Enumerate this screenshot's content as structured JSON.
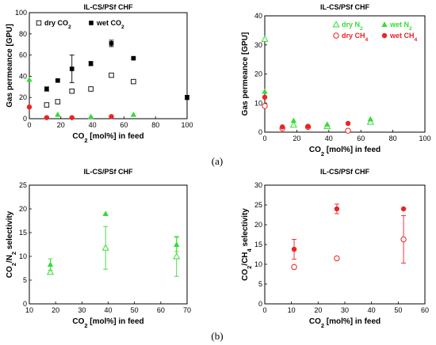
{
  "captions": {
    "a": "(a)",
    "b": "(b)"
  },
  "chart_data": [
    {
      "type": "scatter",
      "title": "IL-CS/PSf CHF",
      "xlabel": "CO₂ [mol%] in feed",
      "ylabel": "Gas permeance [GPU]",
      "xlim": [
        0,
        100
      ],
      "ylim": [
        0,
        100
      ],
      "xticks": [
        0,
        20,
        40,
        60,
        80,
        100
      ],
      "yticks": [
        0,
        20,
        40,
        60,
        80,
        100
      ],
      "legend_position": "top",
      "series": [
        {
          "name": "dry CO₂",
          "color": "#000000",
          "marker": "open-square",
          "x": [
            11,
            18,
            27,
            39,
            52,
            66
          ],
          "y": [
            13,
            16,
            26,
            28,
            41,
            35
          ]
        },
        {
          "name": "wet CO₂",
          "color": "#000000",
          "marker": "filled-square",
          "x": [
            11,
            18,
            27,
            39,
            52,
            66,
            100
          ],
          "y": [
            28,
            36,
            47,
            52,
            71,
            57,
            20
          ],
          "err": [
            2,
            1,
            13,
            2,
            3,
            1,
            2
          ]
        },
        {
          "name": "",
          "color": "#33dd33",
          "marker": "filled-triangle",
          "x": [
            0,
            18,
            39,
            66
          ],
          "y": [
            37,
            4,
            2,
            4
          ]
        },
        {
          "name": "",
          "color": "#ee2222",
          "marker": "filled-circle",
          "x": [
            0,
            11,
            27,
            52
          ],
          "y": [
            11,
            1,
            1,
            2
          ]
        }
      ]
    },
    {
      "type": "scatter",
      "title": "IL-CS/PSf CHF",
      "xlabel": "CO₂ [mol%] in feed",
      "ylabel": "Gas permeance [GPU]",
      "xlim": [
        0,
        100
      ],
      "ylim": [
        0,
        40
      ],
      "xticks": [
        0,
        20,
        40,
        60,
        80,
        100
      ],
      "yticks": [
        0,
        10,
        20,
        30,
        40
      ],
      "legend_position": "top",
      "series": [
        {
          "name": "dry N₂",
          "color": "#33dd33",
          "marker": "open-triangle",
          "x": [
            0,
            18,
            39,
            66
          ],
          "y": [
            32,
            2.5,
            2,
            3.5
          ]
        },
        {
          "name": "wet N₂",
          "color": "#33dd33",
          "marker": "filled-triangle",
          "x": [
            0,
            18,
            39,
            66
          ],
          "y": [
            14,
            4,
            2.7,
            4.5
          ]
        },
        {
          "name": "dry CH₄",
          "color": "#ee2222",
          "marker": "open-circle",
          "x": [
            0,
            11,
            27,
            52
          ],
          "y": [
            9,
            1.3,
            1.8,
            0.5
          ]
        },
        {
          "name": "wet CH₄",
          "color": "#ee2222",
          "marker": "filled-circle",
          "x": [
            0,
            11,
            27,
            52
          ],
          "y": [
            12,
            1.8,
            2,
            3
          ]
        }
      ]
    },
    {
      "type": "scatter",
      "title": "IL-CS/PSf CHF",
      "xlabel": "CO₂ [mol%] in feed",
      "ylabel": "CO₂/N₂ selectivity",
      "xlim": [
        10,
        70
      ],
      "ylim": [
        0,
        25
      ],
      "xticks": [
        10,
        20,
        30,
        40,
        50,
        60,
        70
      ],
      "yticks": [
        0,
        5,
        10,
        15,
        20,
        25
      ],
      "series": [
        {
          "name": "",
          "color": "#33dd33",
          "marker": "open-triangle",
          "x": [
            18,
            39,
            66
          ],
          "y": [
            6.7,
            11.8,
            10
          ],
          "err": [
            0,
            4.5,
            4.2
          ]
        },
        {
          "name": "",
          "color": "#33dd33",
          "marker": "filled-triangle",
          "x": [
            18,
            39,
            66
          ],
          "y": [
            8.3,
            19,
            12.5
          ],
          "err": [
            1.2,
            0,
            1.5
          ]
        }
      ]
    },
    {
      "type": "scatter",
      "title": "IL-CS/PSf CHF",
      "xlabel": "CO₂ [mol%] in feed",
      "ylabel": "CO₂/CH₄ selectivity",
      "xlim": [
        0,
        60
      ],
      "ylim": [
        0,
        30
      ],
      "xticks": [
        0,
        10,
        20,
        30,
        40,
        50,
        60
      ],
      "yticks": [
        0,
        5,
        10,
        15,
        20,
        25,
        30
      ],
      "series": [
        {
          "name": "",
          "color": "#ee2222",
          "marker": "open-circle",
          "x": [
            11,
            27,
            52
          ],
          "y": [
            9.3,
            11.5,
            16.3
          ],
          "err": [
            0,
            0,
            6
          ]
        },
        {
          "name": "",
          "color": "#ee2222",
          "marker": "filled-circle",
          "x": [
            11,
            27,
            52
          ],
          "y": [
            13.8,
            24,
            24
          ],
          "err": [
            2.5,
            1.2,
            0
          ]
        }
      ]
    }
  ]
}
